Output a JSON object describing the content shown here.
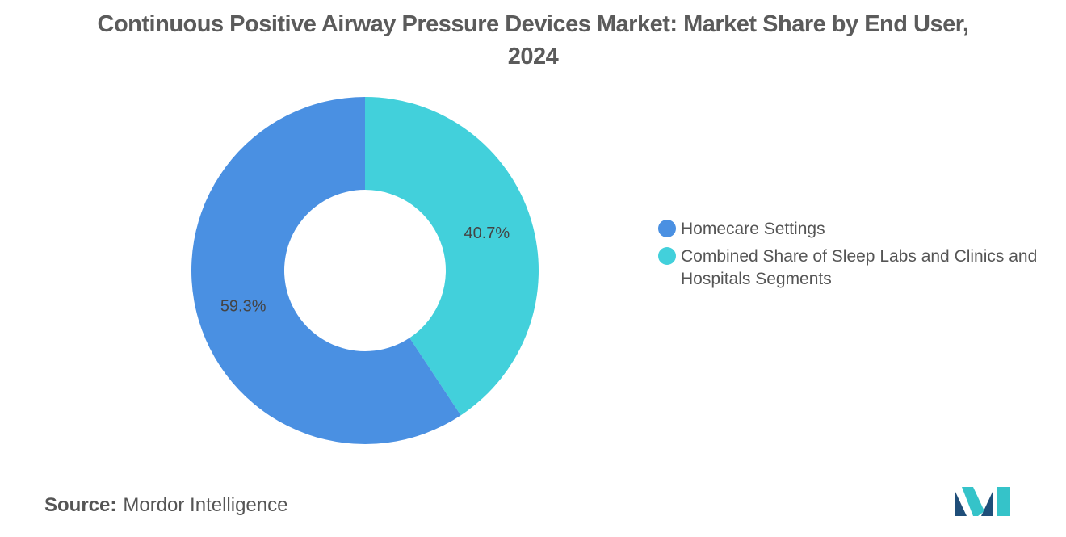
{
  "chart_data": {
    "type": "pie",
    "donut": true,
    "title": "Continuous Positive Airway Pressure Devices Market: Market Share by End User, 2024",
    "slices": [
      {
        "name": "Combined Share of Sleep Labs and Clinics and Hospitals Segments",
        "value": 40.7,
        "label": "40.7%",
        "color": "#42d0db"
      },
      {
        "name": "Homecare Settings",
        "value": 59.3,
        "label": "59.3%",
        "color": "#4a90e2"
      }
    ],
    "legend": {
      "placement": "right",
      "items": [
        {
          "label": "Homecare Settings",
          "color": "#4a90e2"
        },
        {
          "label": "Combined Share of Sleep Labs and Clinics and Hospitals Segments",
          "color": "#42d0db"
        }
      ]
    }
  },
  "footer": {
    "source_label": "Source:",
    "source_text": "Mordor Intelligence"
  },
  "logo": {
    "icon": "mordor-intelligence-logo",
    "colors": [
      "#1f4e79",
      "#35c3c9"
    ]
  }
}
